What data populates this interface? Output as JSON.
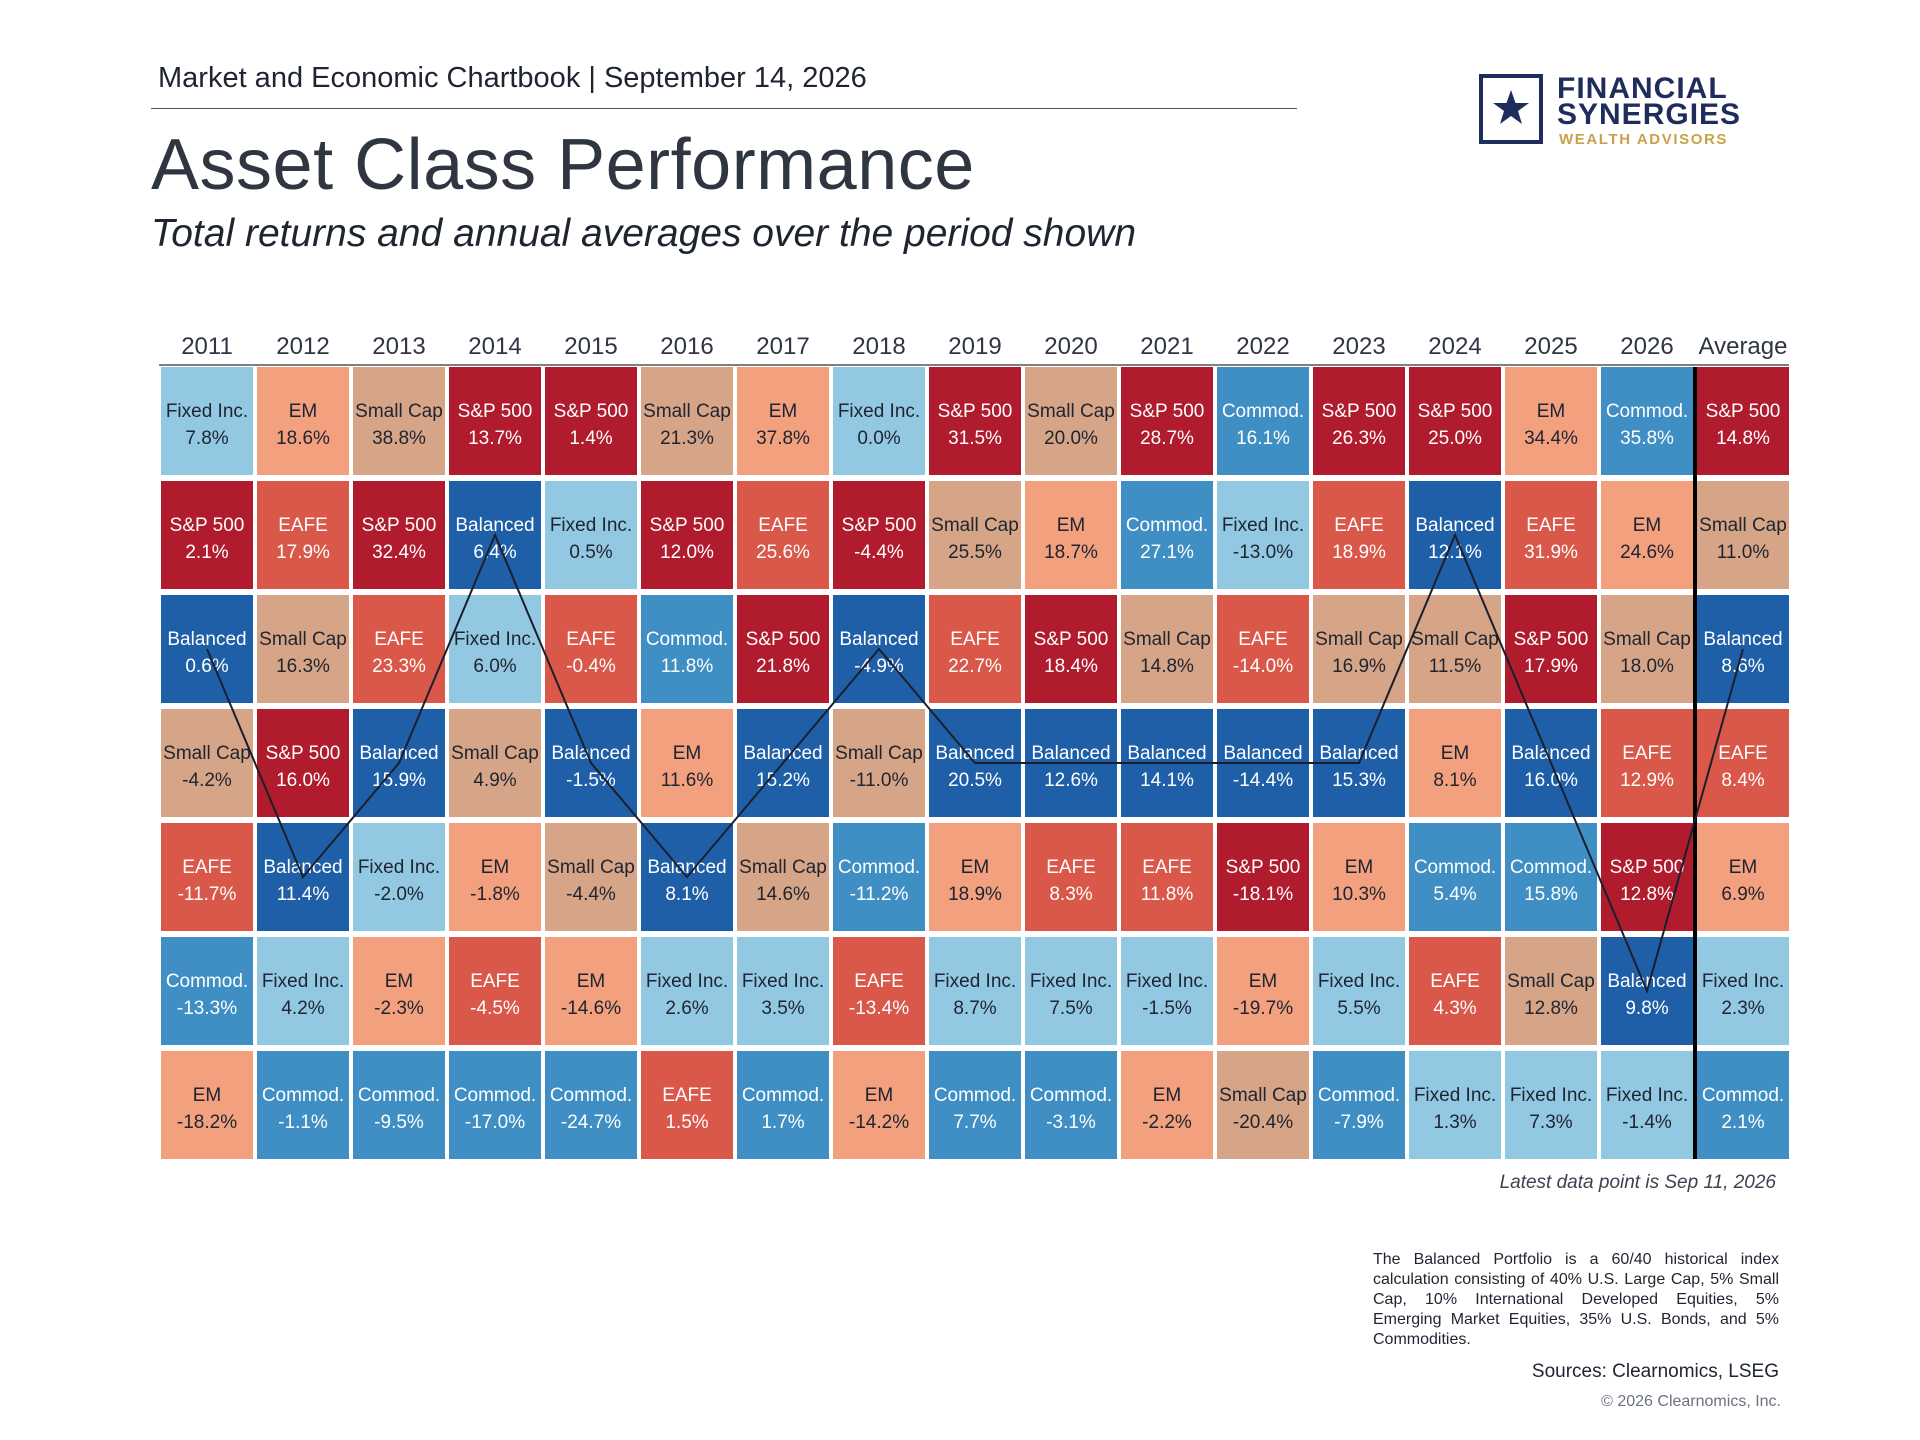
{
  "header": {
    "chartbook": "Market and Economic Chartbook | September 14, 2026",
    "title": "Asset Class Performance",
    "subtitle": "Total returns and annual averages over the period shown"
  },
  "logo": {
    "line1": "FINANCIAL",
    "line2": "SYNERGIES",
    "line3": "WEALTH ADVISORS",
    "icon": "star-icon",
    "color_primary": "#1f2d5c",
    "color_accent": "#c8a24a"
  },
  "chart_data": {
    "type": "table",
    "columns": [
      "2011",
      "2012",
      "2013",
      "2014",
      "2015",
      "2016",
      "2017",
      "2018",
      "2019",
      "2020",
      "2021",
      "2022",
      "2023",
      "2024",
      "2025",
      "2026",
      "Average"
    ],
    "colors": {
      "S&P 500": "#b01c2e",
      "EM": "#f2a07e",
      "Small Cap": "#d6a588",
      "EAFE": "#d9584a",
      "Balanced": "#1f5fa8",
      "Fixed Inc.": "#93c8e2",
      "Commod.": "#3f8fc4"
    },
    "label_colors": {
      "S&P 500": "#ffffff",
      "EM": "#1e2430",
      "Small Cap": "#1e2430",
      "EAFE": "#ffffff",
      "Balanced": "#ffffff",
      "Fixed Inc.": "#1e2430",
      "Commod.": "#ffffff"
    },
    "cells": [
      [
        [
          "Fixed Inc.",
          "7.8%"
        ],
        [
          "S&P 500",
          "2.1%"
        ],
        [
          "Balanced",
          "0.6%"
        ],
        [
          "Small Cap",
          "-4.2%"
        ],
        [
          "EAFE",
          "-11.7%"
        ],
        [
          "Commod.",
          "-13.3%"
        ],
        [
          "EM",
          "-18.2%"
        ]
      ],
      [
        [
          "EM",
          "18.6%"
        ],
        [
          "EAFE",
          "17.9%"
        ],
        [
          "Small Cap",
          "16.3%"
        ],
        [
          "S&P 500",
          "16.0%"
        ],
        [
          "Balanced",
          "11.4%"
        ],
        [
          "Fixed Inc.",
          "4.2%"
        ],
        [
          "Commod.",
          "-1.1%"
        ]
      ],
      [
        [
          "Small Cap",
          "38.8%"
        ],
        [
          "S&P 500",
          "32.4%"
        ],
        [
          "EAFE",
          "23.3%"
        ],
        [
          "Balanced",
          "15.9%"
        ],
        [
          "Fixed Inc.",
          "-2.0%"
        ],
        [
          "EM",
          "-2.3%"
        ],
        [
          "Commod.",
          "-9.5%"
        ]
      ],
      [
        [
          "S&P 500",
          "13.7%"
        ],
        [
          "Balanced",
          "6.4%"
        ],
        [
          "Fixed Inc.",
          "6.0%"
        ],
        [
          "Small Cap",
          "4.9%"
        ],
        [
          "EM",
          "-1.8%"
        ],
        [
          "EAFE",
          "-4.5%"
        ],
        [
          "Commod.",
          "-17.0%"
        ]
      ],
      [
        [
          "S&P 500",
          "1.4%"
        ],
        [
          "Fixed Inc.",
          "0.5%"
        ],
        [
          "EAFE",
          "-0.4%"
        ],
        [
          "Balanced",
          "-1.5%"
        ],
        [
          "Small Cap",
          "-4.4%"
        ],
        [
          "EM",
          "-14.6%"
        ],
        [
          "Commod.",
          "-24.7%"
        ]
      ],
      [
        [
          "Small Cap",
          "21.3%"
        ],
        [
          "S&P 500",
          "12.0%"
        ],
        [
          "Commod.",
          "11.8%"
        ],
        [
          "EM",
          "11.6%"
        ],
        [
          "Balanced",
          "8.1%"
        ],
        [
          "Fixed Inc.",
          "2.6%"
        ],
        [
          "EAFE",
          "1.5%"
        ]
      ],
      [
        [
          "EM",
          "37.8%"
        ],
        [
          "EAFE",
          "25.6%"
        ],
        [
          "S&P 500",
          "21.8%"
        ],
        [
          "Balanced",
          "15.2%"
        ],
        [
          "Small Cap",
          "14.6%"
        ],
        [
          "Fixed Inc.",
          "3.5%"
        ],
        [
          "Commod.",
          "1.7%"
        ]
      ],
      [
        [
          "Fixed Inc.",
          "0.0%"
        ],
        [
          "S&P 500",
          "-4.4%"
        ],
        [
          "Balanced",
          "-4.9%"
        ],
        [
          "Small Cap",
          "-11.0%"
        ],
        [
          "Commod.",
          "-11.2%"
        ],
        [
          "EAFE",
          "-13.4%"
        ],
        [
          "EM",
          "-14.2%"
        ]
      ],
      [
        [
          "S&P 500",
          "31.5%"
        ],
        [
          "Small Cap",
          "25.5%"
        ],
        [
          "EAFE",
          "22.7%"
        ],
        [
          "Balanced",
          "20.5%"
        ],
        [
          "EM",
          "18.9%"
        ],
        [
          "Fixed Inc.",
          "8.7%"
        ],
        [
          "Commod.",
          "7.7%"
        ]
      ],
      [
        [
          "Small Cap",
          "20.0%"
        ],
        [
          "EM",
          "18.7%"
        ],
        [
          "S&P 500",
          "18.4%"
        ],
        [
          "Balanced",
          "12.6%"
        ],
        [
          "EAFE",
          "8.3%"
        ],
        [
          "Fixed Inc.",
          "7.5%"
        ],
        [
          "Commod.",
          "-3.1%"
        ]
      ],
      [
        [
          "S&P 500",
          "28.7%"
        ],
        [
          "Commod.",
          "27.1%"
        ],
        [
          "Small Cap",
          "14.8%"
        ],
        [
          "Balanced",
          "14.1%"
        ],
        [
          "EAFE",
          "11.8%"
        ],
        [
          "Fixed Inc.",
          "-1.5%"
        ],
        [
          "EM",
          "-2.2%"
        ]
      ],
      [
        [
          "Commod.",
          "16.1%"
        ],
        [
          "Fixed Inc.",
          "-13.0%"
        ],
        [
          "EAFE",
          "-14.0%"
        ],
        [
          "Balanced",
          "-14.4%"
        ],
        [
          "S&P 500",
          "-18.1%"
        ],
        [
          "EM",
          "-19.7%"
        ],
        [
          "Small Cap",
          "-20.4%"
        ]
      ],
      [
        [
          "S&P 500",
          "26.3%"
        ],
        [
          "EAFE",
          "18.9%"
        ],
        [
          "Small Cap",
          "16.9%"
        ],
        [
          "Balanced",
          "15.3%"
        ],
        [
          "EM",
          "10.3%"
        ],
        [
          "Fixed Inc.",
          "5.5%"
        ],
        [
          "Commod.",
          "-7.9%"
        ]
      ],
      [
        [
          "S&P 500",
          "25.0%"
        ],
        [
          "Balanced",
          "12.1%"
        ],
        [
          "Small Cap",
          "11.5%"
        ],
        [
          "EM",
          "8.1%"
        ],
        [
          "Commod.",
          "5.4%"
        ],
        [
          "EAFE",
          "4.3%"
        ],
        [
          "Fixed Inc.",
          "1.3%"
        ]
      ],
      [
        [
          "EM",
          "34.4%"
        ],
        [
          "EAFE",
          "31.9%"
        ],
        [
          "S&P 500",
          "17.9%"
        ],
        [
          "Balanced",
          "16.0%"
        ],
        [
          "Commod.",
          "15.8%"
        ],
        [
          "Small Cap",
          "12.8%"
        ],
        [
          "Fixed Inc.",
          "7.3%"
        ]
      ],
      [
        [
          "Commod.",
          "35.8%"
        ],
        [
          "EM",
          "24.6%"
        ],
        [
          "Small Cap",
          "18.0%"
        ],
        [
          "EAFE",
          "12.9%"
        ],
        [
          "S&P 500",
          "12.8%"
        ],
        [
          "Balanced",
          "9.8%"
        ],
        [
          "Fixed Inc.",
          "-1.4%"
        ]
      ],
      [
        [
          "S&P 500",
          "14.8%"
        ],
        [
          "Small Cap",
          "11.0%"
        ],
        [
          "Balanced",
          "8.6%"
        ],
        [
          "EAFE",
          "8.4%"
        ],
        [
          "EM",
          "6.9%"
        ],
        [
          "Fixed Inc.",
          "2.3%"
        ],
        [
          "Commod.",
          "2.1%"
        ]
      ]
    ],
    "balanced_line": {
      "series": "Balanced",
      "stroke": "#1a1f2b"
    },
    "annotation": "Latest data point is Sep 11, 2026"
  },
  "footnote": "The Balanced Portfolio is a 60/40 historical index calculation consisting of 40% U.S. Large Cap, 5% Small Cap, 10% International Developed Equities, 5% Emerging Market Equities, 35% U.S. Bonds, and 5% Commodities.",
  "sources": "Sources: Clearnomics, LSEG",
  "copyright": "© 2026 Clearnomics, Inc."
}
